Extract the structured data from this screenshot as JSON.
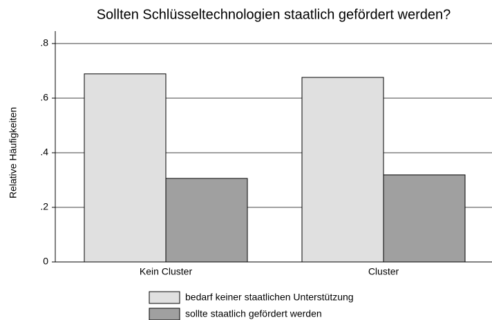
{
  "chart_data": {
    "type": "bar",
    "title": "Sollten Schlüsseltechnologien staatlich gefördert werden?",
    "y_label": "Relative Häufigkeiten",
    "categories": [
      "Kein Cluster",
      "Cluster"
    ],
    "series": [
      {
        "name": "bedarf keiner staatlichen Unterstützung",
        "color": "#e0e0e0",
        "values": [
          0.689,
          0.676
        ]
      },
      {
        "name": "sollte staatlich gefördert werden",
        "color": "#a0a0a0",
        "values": [
          0.306,
          0.319
        ]
      }
    ],
    "ylim": [
      0,
      0.8
    ],
    "yticks": [
      0,
      {
        "value": 0.2,
        "label": ".2"
      },
      {
        "value": 0.4,
        "label": ".4"
      },
      {
        "value": 0.6,
        "label": ".6"
      },
      {
        "value": 0.8,
        "label": ".8"
      }
    ],
    "grid": true,
    "legend": "bottom"
  }
}
